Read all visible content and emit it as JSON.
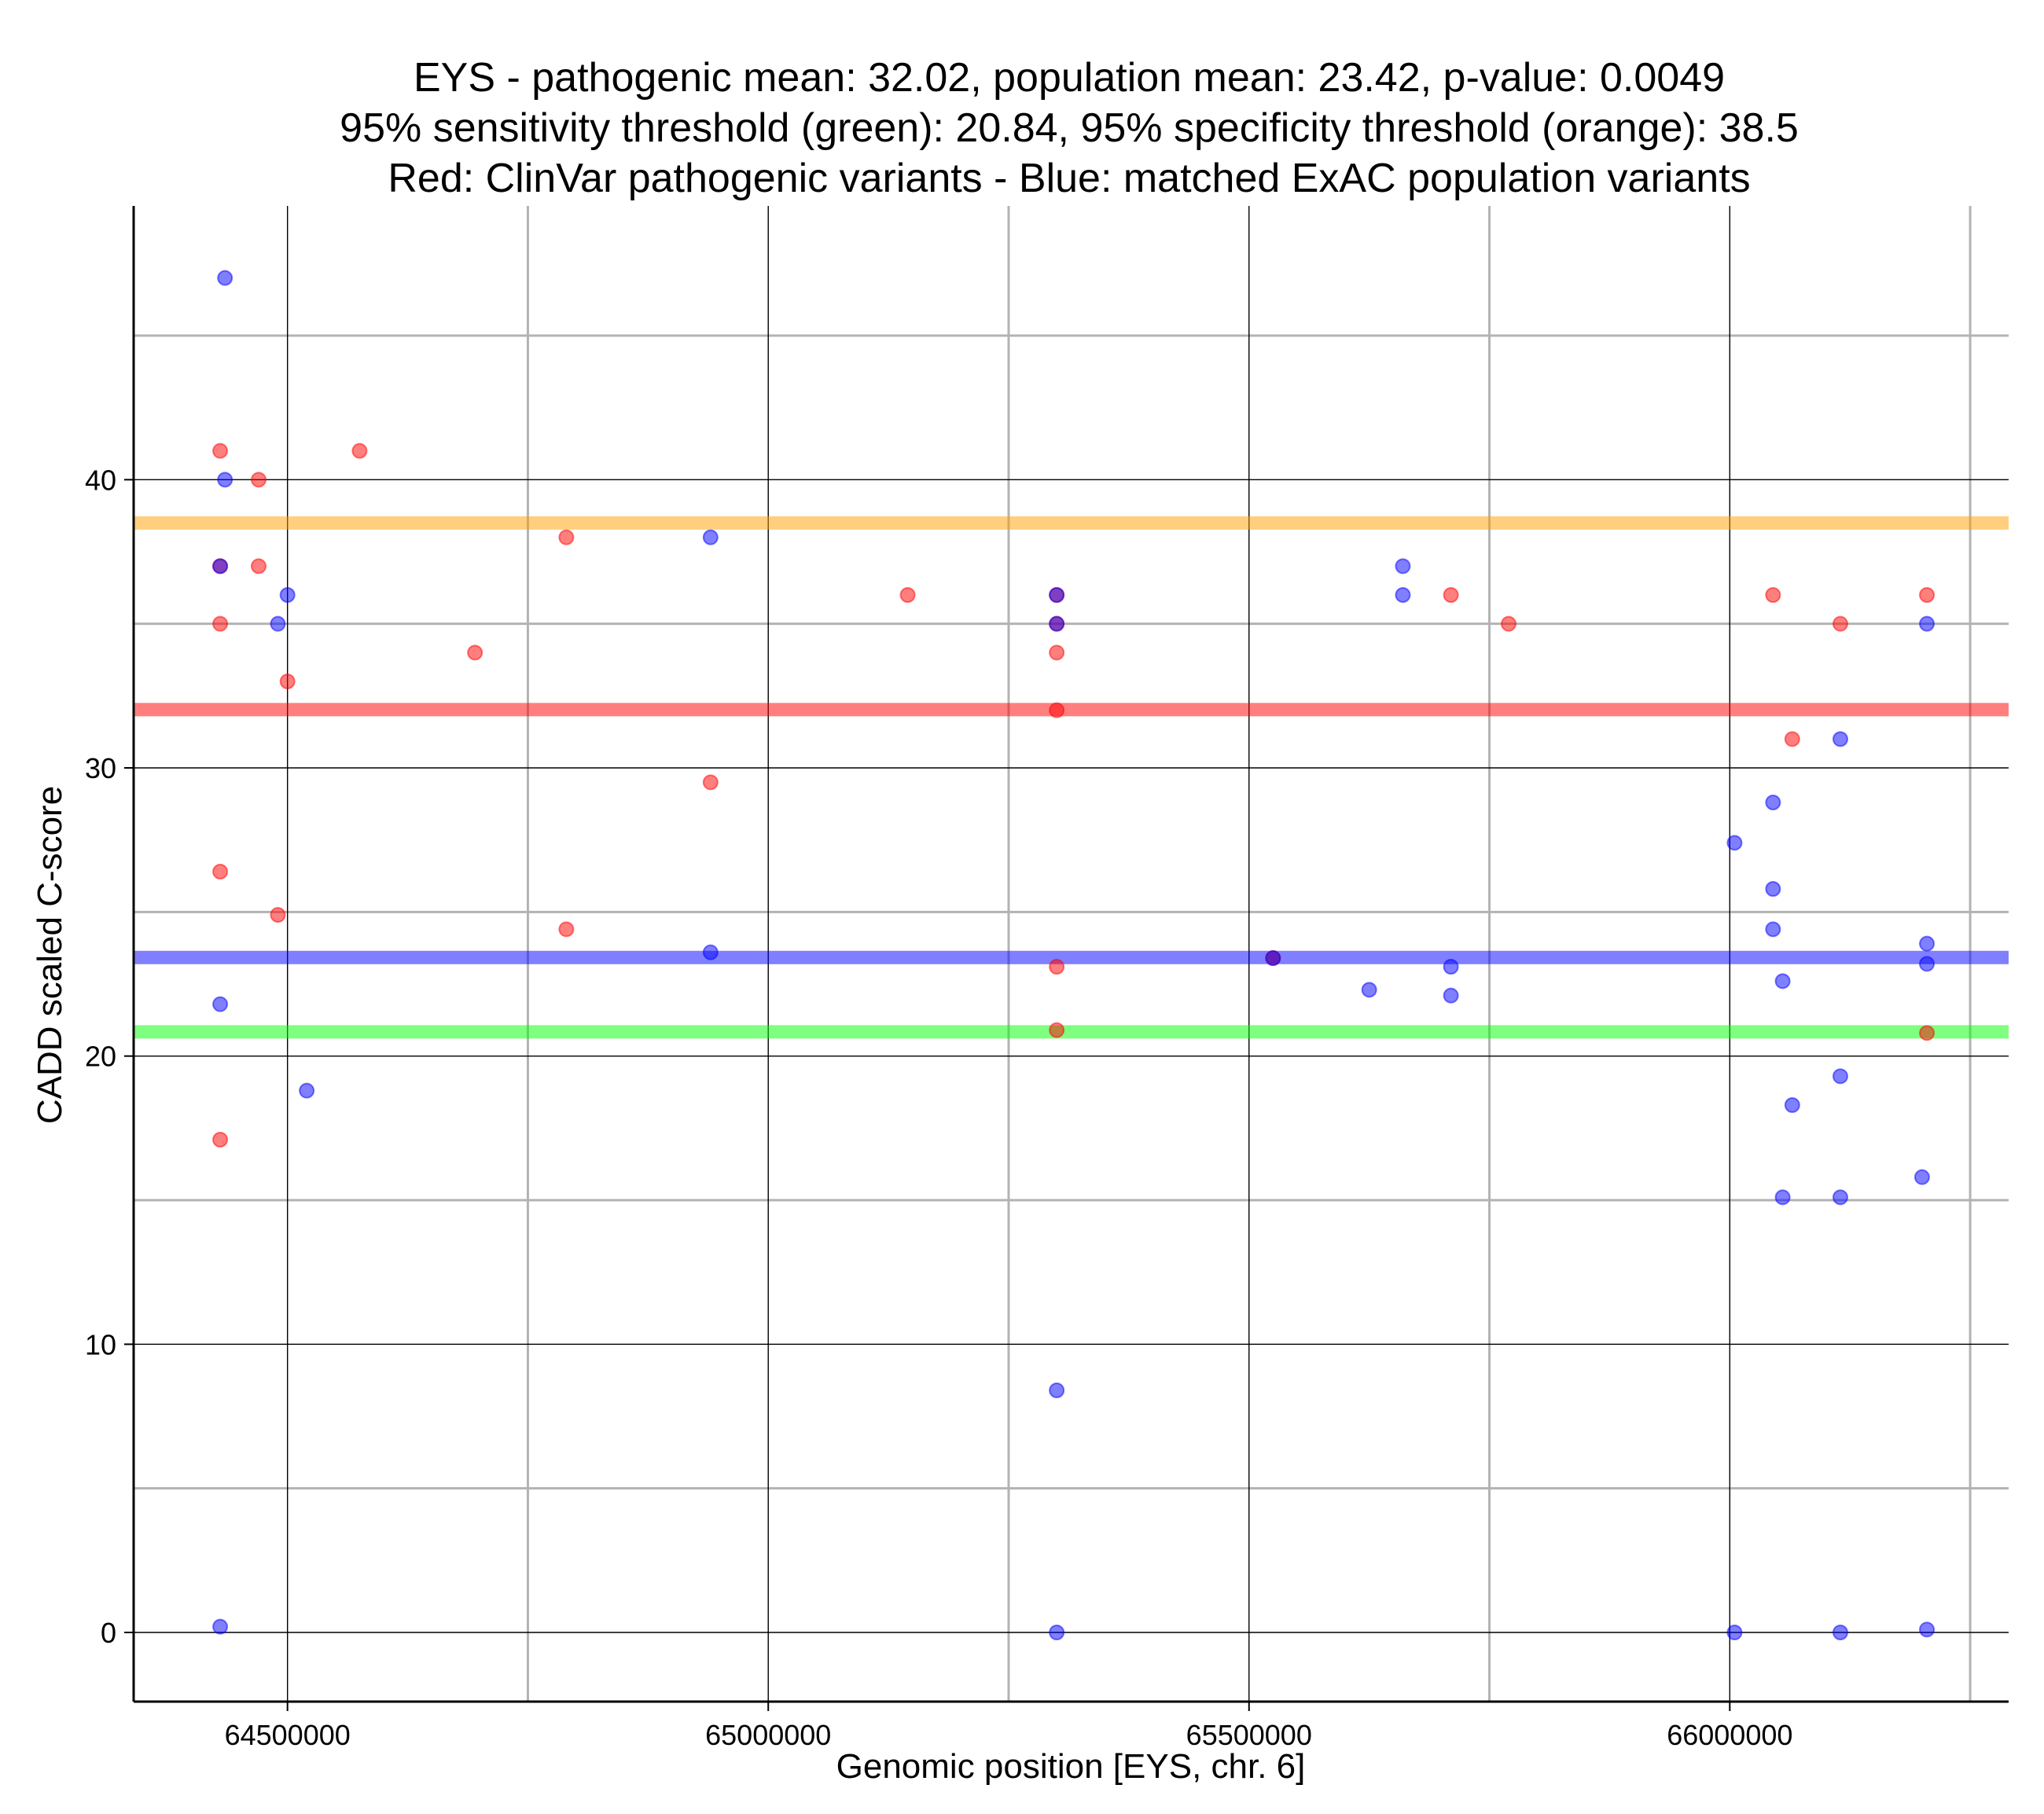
{
  "chart_data": {
    "type": "scatter",
    "title_lines": [
      "EYS - pathogenic mean: 32.02, population mean: 23.42, p-value: 0.0049",
      "95% sensitivity threshold (green): 20.84, 95% specificity threshold (orange): 38.5",
      "Red: ClinVar pathogenic variants - Blue: matched ExAC population variants"
    ],
    "xlabel": "Genomic position [EYS, chr. 6]",
    "ylabel": "CADD scaled C-score",
    "xlim": [
      64340000,
      66290000
    ],
    "ylim": [
      -2.4,
      49.5
    ],
    "x_ticks": [
      64500000,
      65000000,
      65500000,
      66000000
    ],
    "x_tick_labels": [
      "64500000",
      "65000000",
      "65500000",
      "66000000"
    ],
    "x_minor_grid": [
      64750000,
      65250000,
      65750000,
      66250000
    ],
    "y_ticks": [
      0,
      10,
      20,
      30,
      40
    ],
    "y_tick_labels": [
      "0",
      "10",
      "20",
      "30",
      "40"
    ],
    "y_minor_grid": [
      5,
      15,
      25,
      35,
      45
    ],
    "reference_lines": [
      {
        "name": "specificity-threshold",
        "value": 38.5,
        "color": "#ffa000"
      },
      {
        "name": "pathogenic-mean",
        "value": 32.02,
        "color": "#ff0000"
      },
      {
        "name": "population-mean",
        "value": 23.42,
        "color": "#0000ff"
      },
      {
        "name": "sensitivity-threshold",
        "value": 20.84,
        "color": "#00ff00"
      }
    ],
    "series": [
      {
        "name": "ClinVar pathogenic variants",
        "color": "#ff0000",
        "points": [
          [
            64430000,
            41
          ],
          [
            64430000,
            37
          ],
          [
            64430000,
            35
          ],
          [
            64430000,
            26.4
          ],
          [
            64430000,
            17.1
          ],
          [
            64470000,
            40
          ],
          [
            64470000,
            37
          ],
          [
            64490000,
            24.9
          ],
          [
            64500000,
            33
          ],
          [
            64575000,
            41
          ],
          [
            64695000,
            34
          ],
          [
            64790000,
            38
          ],
          [
            64790000,
            24.4
          ],
          [
            64940000,
            29.5
          ],
          [
            65145000,
            36
          ],
          [
            65300000,
            36
          ],
          [
            65300000,
            35
          ],
          [
            65300000,
            34
          ],
          [
            65300000,
            32
          ],
          [
            65300000,
            23.1
          ],
          [
            65300000,
            20.9
          ],
          [
            65525000,
            23.4
          ],
          [
            65710000,
            36
          ],
          [
            65770000,
            35
          ],
          [
            66045000,
            36
          ],
          [
            66065000,
            31
          ],
          [
            66115000,
            35
          ],
          [
            66205000,
            36
          ],
          [
            66205000,
            20.8
          ]
        ]
      },
      {
        "name": "matched ExAC population variants",
        "color": "#0000ff",
        "points": [
          [
            64435000,
            47
          ],
          [
            64435000,
            40
          ],
          [
            64430000,
            37
          ],
          [
            64430000,
            21.8
          ],
          [
            64430000,
            0.2
          ],
          [
            64490000,
            35
          ],
          [
            64500000,
            36
          ],
          [
            64520000,
            18.8
          ],
          [
            64940000,
            38
          ],
          [
            64940000,
            23.6
          ],
          [
            65300000,
            36
          ],
          [
            65300000,
            35
          ],
          [
            65300000,
            8.4
          ],
          [
            65300000,
            0
          ],
          [
            65525000,
            23.4
          ],
          [
            65625000,
            22.3
          ],
          [
            65660000,
            37
          ],
          [
            65660000,
            36
          ],
          [
            65710000,
            23.1
          ],
          [
            65710000,
            22.1
          ],
          [
            66005000,
            27.4
          ],
          [
            66005000,
            0
          ],
          [
            66045000,
            28.8
          ],
          [
            66045000,
            25.8
          ],
          [
            66045000,
            24.4
          ],
          [
            66055000,
            22.6
          ],
          [
            66055000,
            15.1
          ],
          [
            66065000,
            18.3
          ],
          [
            66115000,
            31
          ],
          [
            66115000,
            19.3
          ],
          [
            66115000,
            15.1
          ],
          [
            66115000,
            0
          ],
          [
            66200000,
            15.8
          ],
          [
            66205000,
            35
          ],
          [
            66205000,
            23.9
          ],
          [
            66205000,
            23.2
          ],
          [
            66205000,
            0.1
          ]
        ]
      }
    ]
  }
}
